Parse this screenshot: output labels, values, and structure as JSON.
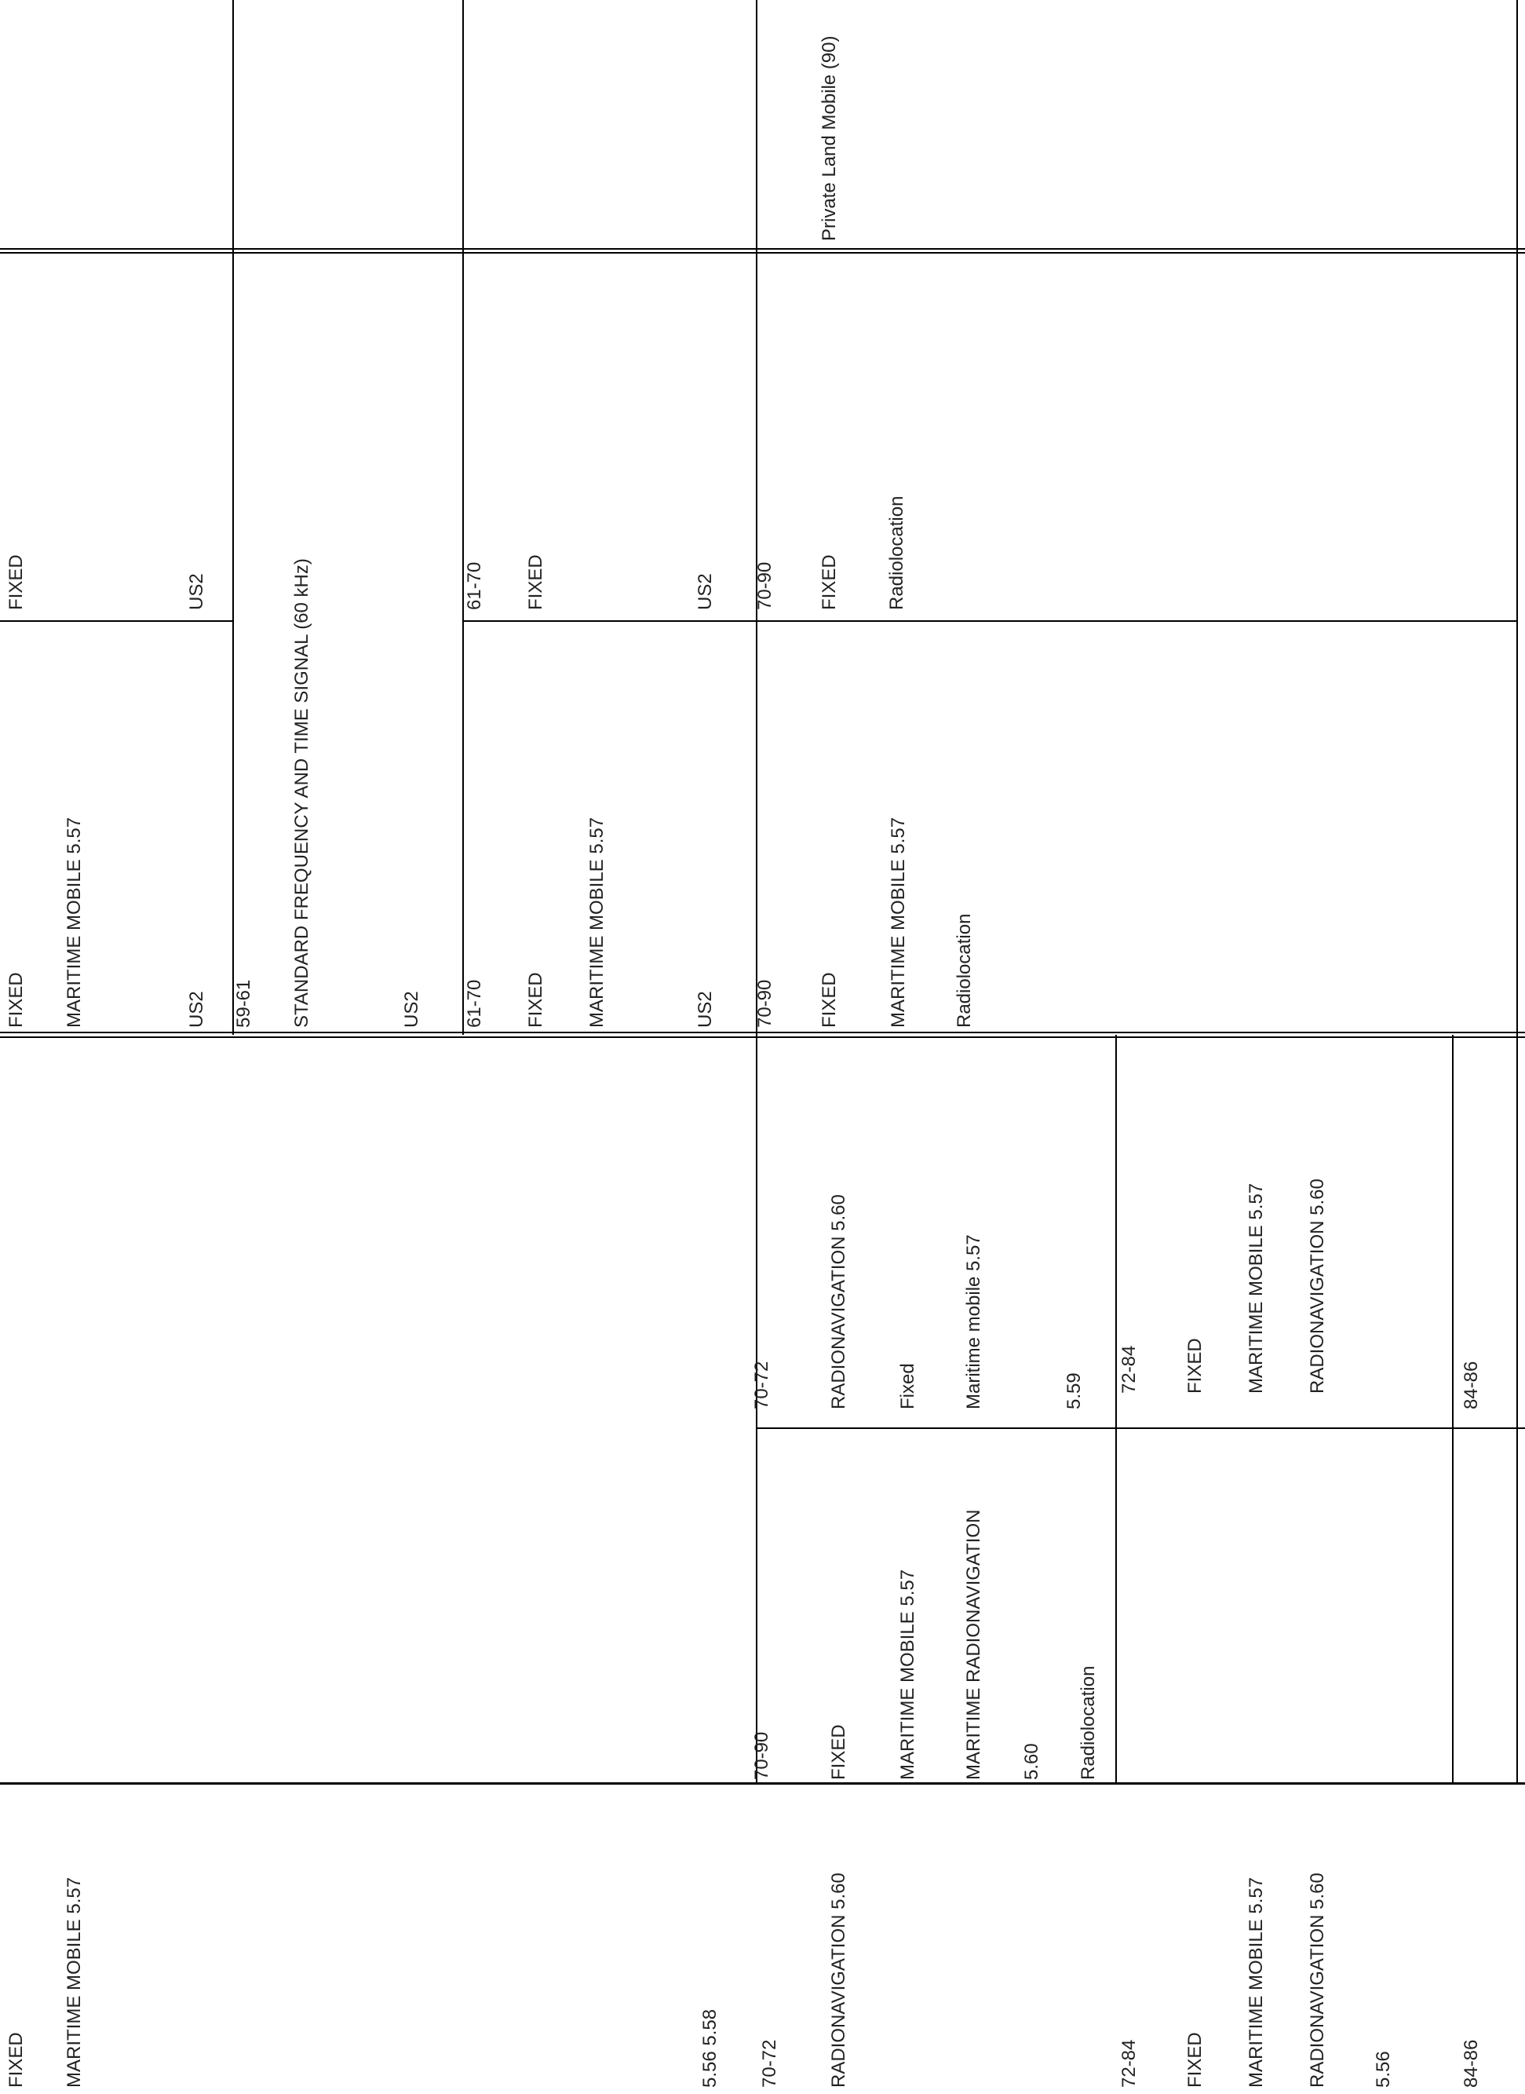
{
  "region1": {
    "band_70_90": {
      "range": "70-90",
      "services": [
        "FIXED",
        "MARITIME MOBILE  5.57",
        "MARITIME RADIONAVIGATION",
        "5.60",
        "Radiolocation"
      ]
    },
    "band_70_72": {
      "range": "70-72",
      "services": [
        "RADIONAVIGATION  5.60",
        "Fixed",
        "Maritime mobile  5.57"
      ],
      "footnote": "5.59"
    },
    "band_72_84": {
      "range": "72-84",
      "services": [
        "FIXED",
        "MARITIME MOBILE  5.57",
        "RADIONAVIGATION  5.60"
      ]
    },
    "band_84_86": {
      "range": "84-86"
    }
  },
  "region3": {
    "top": {
      "services": [
        "FIXED",
        "MARITIME MOBILE  5.57"
      ],
      "footnote": "5.56  5.58"
    },
    "band_70_72": {
      "range": "70-72",
      "services": [
        "RADIONAVIGATION  5.60"
      ]
    },
    "band_72_84": {
      "range": "72-84",
      "services": [
        "FIXED",
        "MARITIME MOBILE  5.57",
        "RADIONAVIGATION  5.60"
      ],
      "footnote": "5.56"
    },
    "band_84_86": {
      "range": "84-86"
    }
  },
  "federal": {
    "cont": {
      "services": [
        "FIXED",
        "MARITIME MOBILE  5.57"
      ],
      "footnote": "US2"
    },
    "band_59_61": {
      "range": "59-61",
      "services": [
        "STANDARD FREQUENCY AND TIME SIGNAL (60 kHz)"
      ],
      "footnote": "US2"
    },
    "band_61_70": {
      "range": "61-70",
      "services": [
        "FIXED",
        "MARITIME MOBILE  5.57"
      ],
      "footnote": "US2"
    },
    "band_70_90": {
      "range": "70-90",
      "services": [
        "FIXED",
        "MARITIME MOBILE  5.57",
        "Radiolocation"
      ]
    }
  },
  "non_federal": {
    "cont": {
      "services": [
        "FIXED"
      ],
      "footnote": "US2"
    },
    "band_61_70": {
      "range": "61-70",
      "services": [
        "FIXED"
      ],
      "footnote": "US2"
    },
    "band_70_90": {
      "range": "70-90",
      "services": [
        "FIXED",
        "Radiolocation"
      ]
    }
  },
  "fcc_rule_part": "Private Land Mobile (90)"
}
